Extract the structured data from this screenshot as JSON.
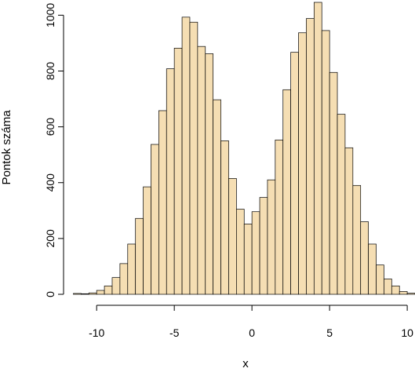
{
  "chart_data": {
    "type": "bar",
    "subtype": "histogram",
    "title": "",
    "xlabel": "x",
    "ylabel": "Pontok száma",
    "bar_color": "#F5DEB3",
    "edge_color": "#000000",
    "bin_width": 0.5,
    "bin_start": -11.5,
    "counts": [
      3,
      2,
      5,
      14,
      30,
      60,
      110,
      180,
      272,
      385,
      537,
      658,
      808,
      882,
      993,
      975,
      888,
      862,
      697,
      550,
      415,
      305,
      252,
      296,
      347,
      410,
      553,
      733,
      867,
      937,
      988,
      1046,
      945,
      795,
      645,
      525,
      390,
      260,
      180,
      105,
      55,
      30,
      10,
      4
    ],
    "xlim": [
      -11.5,
      10.5
    ],
    "ylim": [
      0,
      1046
    ],
    "xticks": [
      -10,
      -5,
      0,
      5,
      10
    ],
    "xtick_labels": [
      "-10",
      "-5",
      "0",
      "5",
      "10"
    ],
    "yticks": [
      0,
      200,
      400,
      600,
      800,
      1000
    ],
    "ytick_labels": [
      "0",
      "200",
      "400",
      "600",
      "800",
      "1000"
    ],
    "grid": false,
    "legend": "none"
  }
}
